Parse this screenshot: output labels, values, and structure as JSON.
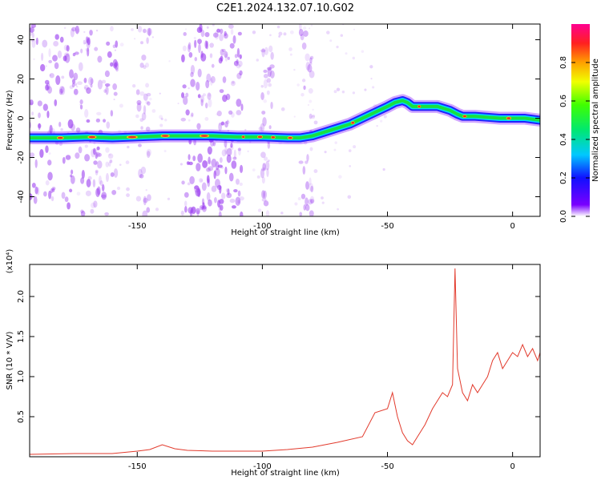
{
  "title": "C2E1.2024.132.07.10.G02",
  "colors": {
    "snr_line": "#e23a2c",
    "track_core": "#e03030",
    "track_mid": "#18e040",
    "track_edge": "#2020ff",
    "scatter": "#9a3cf0"
  },
  "chart_data": [
    {
      "type": "heatmap",
      "title": "C2E1.2024.132.07.10.G02",
      "xlabel": "Height of straight line (km)",
      "ylabel": "Frequency (Hz)",
      "xlim": [
        -193,
        11
      ],
      "ylim": [
        -50,
        48
      ],
      "xticks": [
        -150,
        -100,
        -50,
        0
      ],
      "yticks": [
        -40,
        -20,
        0,
        20,
        40
      ],
      "colorbar": {
        "label": "Normalized spectral amplitude",
        "range": [
          0,
          1
        ],
        "ticks": [
          "0.0",
          "0.2",
          "0.4",
          "0.6",
          "0.8"
        ],
        "colormap": "rainbow"
      },
      "track": {
        "x": [
          -193,
          -180,
          -170,
          -160,
          -150,
          -140,
          -130,
          -120,
          -110,
          -100,
          -90,
          -85,
          -80,
          -75,
          -70,
          -65,
          -60,
          -55,
          -50,
          -47,
          -44,
          -42,
          -40,
          -35,
          -30,
          -25,
          -22,
          -20,
          -15,
          -10,
          -5,
          0,
          5,
          11
        ],
        "y": [
          -10,
          -10,
          -9.5,
          -10,
          -9.5,
          -9,
          -9,
          -9,
          -9.5,
          -9.5,
          -10,
          -10,
          -9,
          -7,
          -5,
          -3,
          0,
          3,
          6,
          8,
          9,
          8,
          6,
          6,
          6,
          4,
          2,
          1,
          1,
          0.5,
          0,
          0,
          0,
          -1
        ]
      },
      "scatter_bands": [
        {
          "x_range": [
            -193,
            -158
          ],
          "density": "high"
        },
        {
          "x_range": [
            -150,
            -145
          ],
          "density": "low"
        },
        {
          "x_range": [
            -132,
            -108
          ],
          "density": "high"
        },
        {
          "x_range": [
            -100,
            -96
          ],
          "density": "low"
        },
        {
          "x_range": [
            -85,
            -80
          ],
          "density": "low"
        }
      ]
    },
    {
      "type": "line",
      "xlabel": "Height of straight line (km)",
      "ylabel": "SNR (10 * V/V)",
      "y_multiplier": "(x10⁴)",
      "xlim": [
        -193,
        11
      ],
      "ylim": [
        0,
        24000
      ],
      "xticks": [
        -150,
        -100,
        -50,
        0
      ],
      "yticks": [
        "0.5",
        "1.0",
        "1.5",
        "2.0"
      ],
      "series": [
        {
          "x": [
            -193,
            -175,
            -160,
            -150,
            -145,
            -140,
            -135,
            -130,
            -120,
            -110,
            -100,
            -90,
            -80,
            -70,
            -60,
            -55,
            -50,
            -48,
            -46,
            -44,
            -42,
            -40,
            -38,
            -35,
            -32,
            -30,
            -28,
            -26,
            -24,
            -23,
            -22,
            -20,
            -18,
            -16,
            -14,
            -12,
            -10,
            -8,
            -6,
            -4,
            -2,
            0,
            2,
            4,
            6,
            8,
            10,
            11
          ],
          "y": [
            300,
            400,
            400,
            700,
            900,
            1500,
            1000,
            800,
            700,
            700,
            700,
            900,
            1200,
            1800,
            2500,
            5500,
            6000,
            8000,
            5000,
            3000,
            2000,
            1500,
            2500,
            4000,
            6000,
            7000,
            8000,
            7500,
            9000,
            23500,
            11000,
            8000,
            7000,
            9000,
            8000,
            9000,
            10000,
            12000,
            13000,
            11000,
            12000,
            13000,
            12500,
            14000,
            12500,
            13500,
            12000,
            13000
          ]
        }
      ]
    }
  ]
}
